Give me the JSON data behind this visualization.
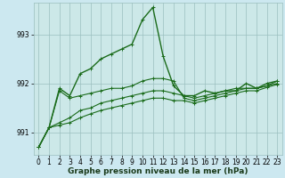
{
  "xlabel": "Graphe pression niveau de la mer (hPa)",
  "bg_color": "#cce8f0",
  "plot_bg_color": "#cce8e8",
  "grid_color": "#9bbfbf",
  "line_color": "#1a6b1a",
  "xlim": [
    -0.5,
    23.5
  ],
  "ylim": [
    990.55,
    993.65
  ],
  "yticks": [
    991,
    992,
    993
  ],
  "xticks": [
    0,
    1,
    2,
    3,
    4,
    5,
    6,
    7,
    8,
    9,
    10,
    11,
    12,
    13,
    14,
    15,
    16,
    17,
    18,
    19,
    20,
    21,
    22,
    23
  ],
  "series": [
    [
      990.7,
      991.1,
      991.9,
      991.75,
      992.2,
      992.3,
      992.5,
      992.6,
      992.7,
      992.8,
      993.3,
      993.55,
      992.55,
      991.95,
      991.75,
      991.75,
      991.85,
      991.8,
      991.85,
      991.85,
      992.0,
      991.9,
      992.0,
      992.05
    ],
    [
      990.7,
      991.1,
      991.85,
      991.7,
      991.75,
      991.8,
      991.85,
      991.9,
      991.9,
      991.95,
      992.05,
      992.1,
      992.1,
      992.05,
      991.7,
      991.65,
      991.7,
      991.75,
      991.8,
      991.85,
      991.9,
      991.9,
      991.95,
      992.05
    ],
    [
      990.7,
      991.1,
      991.2,
      991.3,
      991.45,
      991.5,
      991.6,
      991.65,
      991.7,
      991.75,
      991.8,
      991.85,
      991.85,
      991.8,
      991.75,
      991.7,
      991.75,
      991.8,
      991.85,
      991.9,
      991.9,
      991.9,
      991.95,
      992.0
    ],
    [
      990.7,
      991.1,
      991.15,
      991.2,
      991.3,
      991.38,
      991.45,
      991.5,
      991.55,
      991.6,
      991.65,
      991.7,
      991.7,
      991.65,
      991.65,
      991.6,
      991.65,
      991.7,
      991.75,
      991.8,
      991.85,
      991.85,
      991.92,
      991.98
    ]
  ],
  "tick_fontsize": 5.5,
  "xlabel_fontsize": 6.5,
  "lws": [
    1.0,
    0.8,
    0.8,
    0.8
  ],
  "marker_sizes": [
    3.0,
    2.5,
    2.5,
    2.5
  ]
}
